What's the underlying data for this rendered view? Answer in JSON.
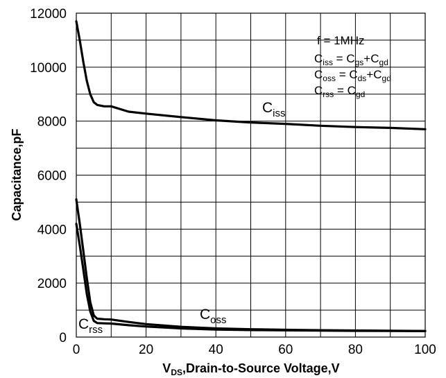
{
  "chart_data": {
    "type": "line",
    "xlabel": {
      "main": "V",
      "sub": "DS",
      "rest": ",Drain-to-Source Voltage,V"
    },
    "ylabel": "Capacitance,pF",
    "xlim": [
      0,
      100
    ],
    "ylim": [
      0,
      12000
    ],
    "xticks": [
      0,
      20,
      40,
      60,
      80,
      100
    ],
    "yticks": [
      0,
      2000,
      4000,
      6000,
      8000,
      10000,
      12000
    ],
    "grid": true,
    "annotation": {
      "freq": "f = 1MHz",
      "lines": [
        {
          "a": "C",
          "a_sub": "iss",
          "eq": " = C",
          "b_sub": "gs",
          "plus": "+C",
          "c_sub": "gd"
        },
        {
          "a": "C",
          "a_sub": "oss",
          "eq": " = C",
          "b_sub": "ds",
          "plus": "+C",
          "c_sub": "gd"
        },
        {
          "a": "C",
          "a_sub": "rss",
          "eq": " = C",
          "b_sub": "gd"
        }
      ]
    },
    "series": [
      {
        "name": {
          "main": "C",
          "sub": "iss"
        },
        "x": [
          0,
          1,
          2,
          3,
          4,
          5,
          6,
          8,
          10,
          15,
          20,
          30,
          40,
          50,
          60,
          70,
          80,
          90,
          100
        ],
        "y": [
          11700,
          11000,
          10200,
          9500,
          9000,
          8700,
          8600,
          8550,
          8550,
          8350,
          8280,
          8150,
          8030,
          7950,
          7900,
          7830,
          7780,
          7750,
          7700
        ]
      },
      {
        "name": {
          "main": "C",
          "sub": "oss"
        },
        "x": [
          0,
          1,
          2,
          3,
          4,
          5,
          6,
          8,
          10,
          15,
          20,
          30,
          40,
          50,
          60,
          70,
          80,
          90,
          100
        ],
        "y": [
          5100,
          4200,
          3200,
          2200,
          1300,
          800,
          680,
          660,
          650,
          560,
          480,
          380,
          320,
          290,
          270,
          255,
          245,
          235,
          225
        ]
      },
      {
        "name": {
          "main": "C",
          "sub": "rss"
        },
        "x": [
          0,
          1,
          2,
          3,
          4,
          5,
          6,
          8,
          10,
          15,
          20,
          30,
          40,
          50,
          60,
          70,
          80,
          90,
          100
        ],
        "y": [
          4200,
          3400,
          2500,
          1600,
          950,
          600,
          520,
          510,
          500,
          440,
          390,
          320,
          280,
          260,
          250,
          240,
          232,
          228,
          220
        ]
      }
    ]
  }
}
